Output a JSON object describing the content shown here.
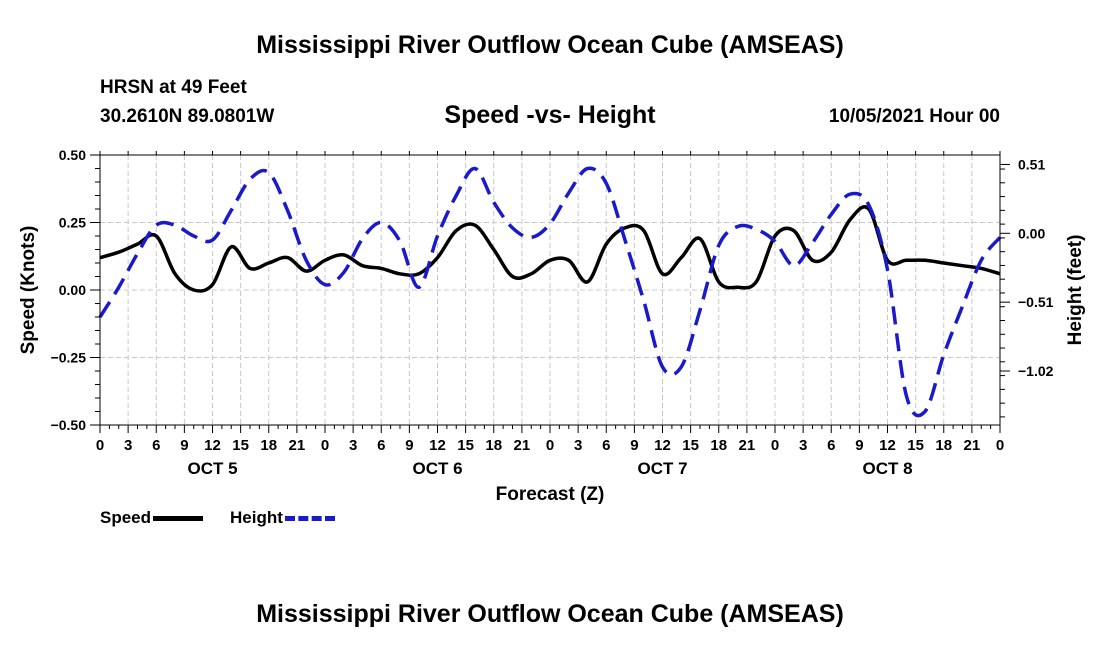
{
  "header": {
    "title": "Mississippi River Outflow Ocean Cube (AMSEAS)",
    "station": "HRSN at 49 Feet",
    "coords": "30.2610N  89.0801W",
    "subtitle": "Speed -vs- Height",
    "datetime": "10/05/2021 Hour 00"
  },
  "footer": {
    "title": "Mississippi River Outflow Ocean Cube (AMSEAS)"
  },
  "legend": {
    "speed_label": "Speed",
    "height_label": "Height"
  },
  "colors": {
    "speed": "#000000",
    "height": "#1a1acc",
    "grid": "#c8c8c8"
  },
  "chart_data": {
    "type": "line",
    "xlabel": "Forecast (Z)",
    "ylabel": "Speed (Knots)",
    "y2label": "Height (feet)",
    "xlim": [
      0,
      96
    ],
    "ylim": [
      -0.5,
      0.5
    ],
    "y2lim": [
      -1.42,
      0.58
    ],
    "x_tick_labels": [
      "0",
      "3",
      "6",
      "9",
      "12",
      "15",
      "18",
      "21",
      "0",
      "3",
      "6",
      "9",
      "12",
      "15",
      "18",
      "21",
      "0",
      "3",
      "6",
      "9",
      "12",
      "15",
      "18",
      "21",
      "0",
      "3",
      "6",
      "9",
      "12",
      "15",
      "18",
      "21",
      "0"
    ],
    "y_ticks": [
      -0.5,
      -0.25,
      0.0,
      0.25,
      0.5
    ],
    "y_tick_labels": [
      "−0.50",
      "−0.25",
      "0.00",
      "0.25",
      "0.50"
    ],
    "y2_ticks": [
      0.51,
      0.0,
      -0.51,
      -1.02
    ],
    "y2_tick_labels": [
      "0.51",
      "0.00",
      "−0.51",
      "−1.02"
    ],
    "day_labels": [
      {
        "label": "OCT 5",
        "x": 12
      },
      {
        "label": "OCT 6",
        "x": 36
      },
      {
        "label": "OCT 7",
        "x": 60
      },
      {
        "label": "OCT 8",
        "x": 84
      }
    ],
    "series": [
      {
        "name": "Speed",
        "axis": "left",
        "x": [
          0,
          2,
          4,
          6,
          8,
          10,
          12,
          14,
          16,
          18,
          20,
          22,
          24,
          26,
          28,
          30,
          32,
          34,
          36,
          38,
          40,
          42,
          44,
          46,
          48,
          50,
          52,
          54,
          56,
          58,
          60,
          62,
          64,
          66,
          68,
          70,
          72,
          74,
          76,
          78,
          80,
          82,
          84,
          86,
          88,
          90,
          92,
          94,
          96
        ],
        "values": [
          0.12,
          0.14,
          0.17,
          0.2,
          0.06,
          0.0,
          0.02,
          0.16,
          0.08,
          0.1,
          0.12,
          0.07,
          0.11,
          0.13,
          0.09,
          0.08,
          0.06,
          0.06,
          0.12,
          0.22,
          0.24,
          0.15,
          0.05,
          0.06,
          0.11,
          0.11,
          0.03,
          0.17,
          0.23,
          0.22,
          0.06,
          0.12,
          0.19,
          0.03,
          0.01,
          0.03,
          0.2,
          0.22,
          0.11,
          0.14,
          0.26,
          0.3,
          0.11,
          0.11,
          0.11,
          0.1,
          0.09,
          0.08,
          0.06
        ]
      },
      {
        "name": "Height",
        "axis": "right",
        "x": [
          0,
          2,
          4,
          6,
          8,
          10,
          12,
          14,
          16,
          18,
          20,
          22,
          24,
          26,
          28,
          30,
          32,
          34,
          36,
          38,
          40,
          42,
          44,
          46,
          48,
          50,
          52,
          54,
          56,
          58,
          60,
          62,
          64,
          66,
          68,
          70,
          72,
          74,
          76,
          78,
          80,
          82,
          84,
          86,
          88,
          90,
          92,
          94,
          96
        ],
        "values": [
          -0.62,
          -0.4,
          -0.15,
          0.06,
          0.06,
          -0.02,
          -0.05,
          0.17,
          0.4,
          0.45,
          0.17,
          -0.2,
          -0.38,
          -0.29,
          -0.04,
          0.08,
          -0.06,
          -0.4,
          -0.02,
          0.28,
          0.48,
          0.23,
          0.04,
          -0.03,
          0.07,
          0.3,
          0.48,
          0.37,
          -0.05,
          -0.5,
          -0.99,
          -0.99,
          -0.57,
          -0.09,
          0.05,
          0.03,
          -0.06,
          -0.24,
          -0.07,
          0.14,
          0.29,
          0.21,
          -0.27,
          -1.2,
          -1.32,
          -0.9,
          -0.54,
          -0.2,
          -0.03
        ]
      }
    ]
  }
}
